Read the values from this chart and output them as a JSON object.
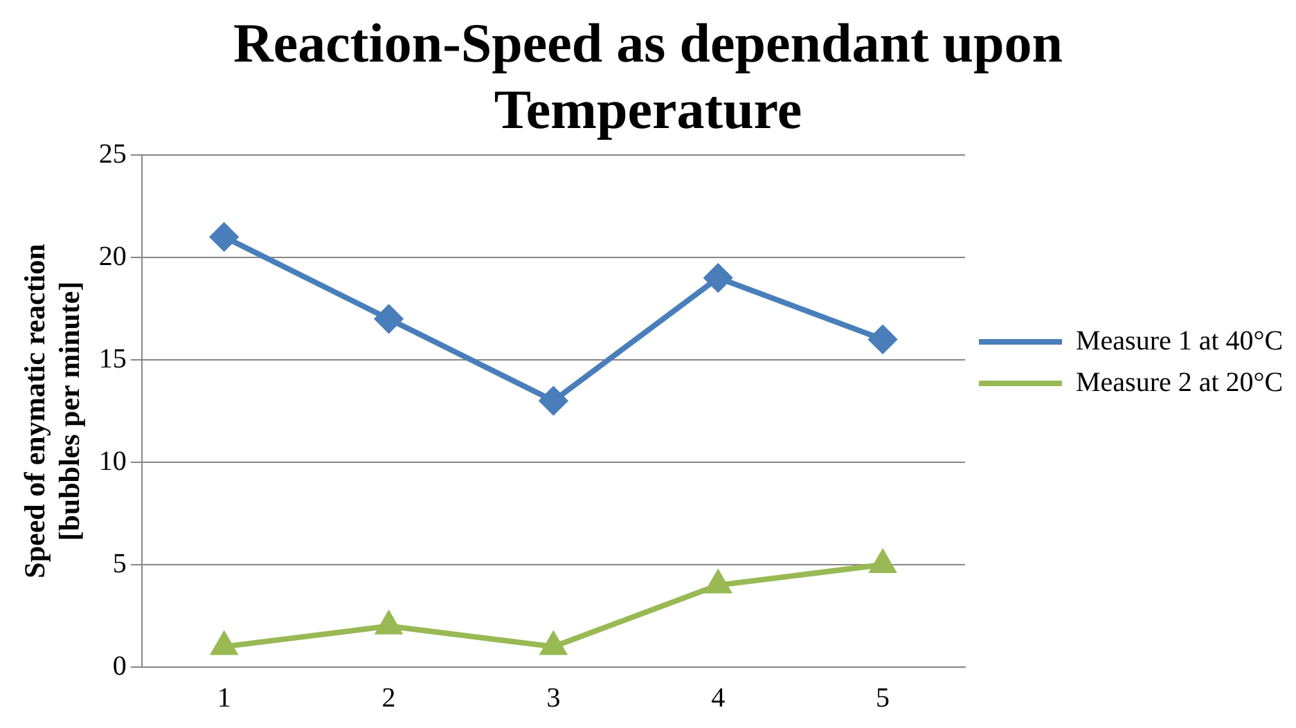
{
  "chart_data": {
    "type": "line",
    "title": "Reaction-Speed as dependant upon Temperature",
    "ylabel": "Speed of enymatic reaction [bubbles per minute]",
    "categories": [
      "1",
      "2",
      "3",
      "4",
      "5"
    ],
    "series": [
      {
        "name": "Measure 1 at 40°C",
        "color": "#4a7ebb",
        "marker": "diamond",
        "values": [
          21,
          17,
          13,
          19,
          16
        ]
      },
      {
        "name": "Measure 2 at 20°C",
        "color": "#98b954",
        "marker": "triangle",
        "values": [
          1,
          2,
          1,
          4,
          5
        ]
      }
    ],
    "ylim": [
      0,
      25
    ],
    "yticks": [
      0,
      5,
      10,
      15,
      20,
      25
    ],
    "grid": "y",
    "legend": "right",
    "line_style": "solid"
  }
}
